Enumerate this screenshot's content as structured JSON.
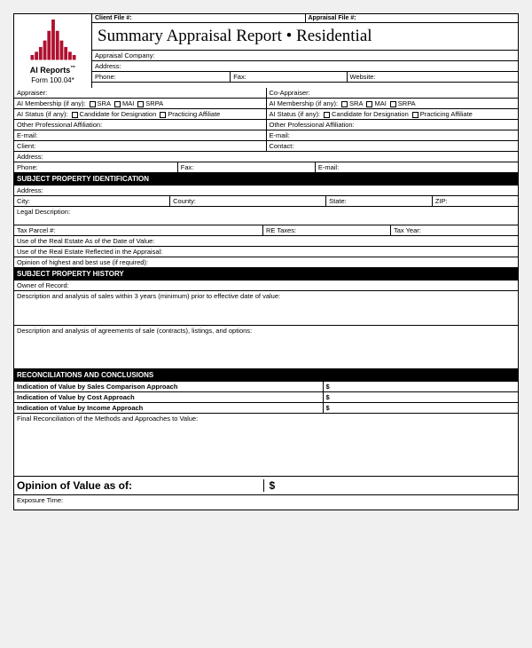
{
  "logo": {
    "brand": "AI Reports",
    "form": "Form 100.04*",
    "bars": [
      6,
      10,
      16,
      24,
      36,
      50,
      36,
      24,
      16,
      10,
      6
    ],
    "color": "#b01030"
  },
  "fileRow": {
    "clientFile": "Client File #:",
    "appraisalFile": "Appraisal File #:"
  },
  "title": "Summary Appraisal Report • Residential",
  "company": {
    "appraisalCompany": "Appraisal Company:",
    "address": "Address:",
    "phone": "Phone:",
    "fax": "Fax:",
    "website": "Website:"
  },
  "appraiser": {
    "appraiser": "Appraiser:",
    "coAppraiser": "Co-Appraiser:",
    "membership": "AI Membership (if any):",
    "sra": "SRA",
    "mai": "MAI",
    "srpa": "SRPA",
    "status": "AI Status (if any):",
    "candidate": "Candidate for Designation",
    "practicing": "Practicing Affiliate",
    "otherAffil": "Other Professional Affiliation:",
    "email": "E-mail:",
    "contact": "Contact:",
    "client": "Client:",
    "address": "Address:",
    "phone": "Phone:",
    "fax": "Fax:"
  },
  "spi": {
    "hdr": "SUBJECT PROPERTY IDENTIFICATION",
    "address": "Address:",
    "city": "City:",
    "county": "County:",
    "state": "State:",
    "zip": "ZIP:",
    "legal": "Legal Description:",
    "taxParcel": "Tax Parcel #:",
    "reTaxes": "RE Taxes:",
    "taxYear": "Tax Year:",
    "useAsOf": "Use of the Real Estate As of the Date of Value:",
    "useReflected": "Use of the Real Estate Reflected in the Appraisal:",
    "opinion": "Opinion of highest and best use (if required):"
  },
  "sph": {
    "hdr": "SUBJECT PROPERTY HISTORY",
    "owner": "Owner of Record:",
    "desc1": "Description and analysis of sales within 3 years (minimum) prior to effective date of value:",
    "desc2": "Description and analysis of agreements of sale (contracts), listings, and options:"
  },
  "rec": {
    "hdr": "RECONCILIATIONS AND CONCLUSIONS",
    "sales": "Indication of Value by Sales Comparison Approach",
    "cost": "Indication of Value by Cost Approach",
    "income": "Indication of Value by Income Approach",
    "dollar": "$",
    "final": "Final Reconciliation of the Methods and Approaches to Value:"
  },
  "opinion": {
    "label": "Opinion of Value as of:",
    "dollar": "$"
  },
  "exposure": "Exposure Time:"
}
